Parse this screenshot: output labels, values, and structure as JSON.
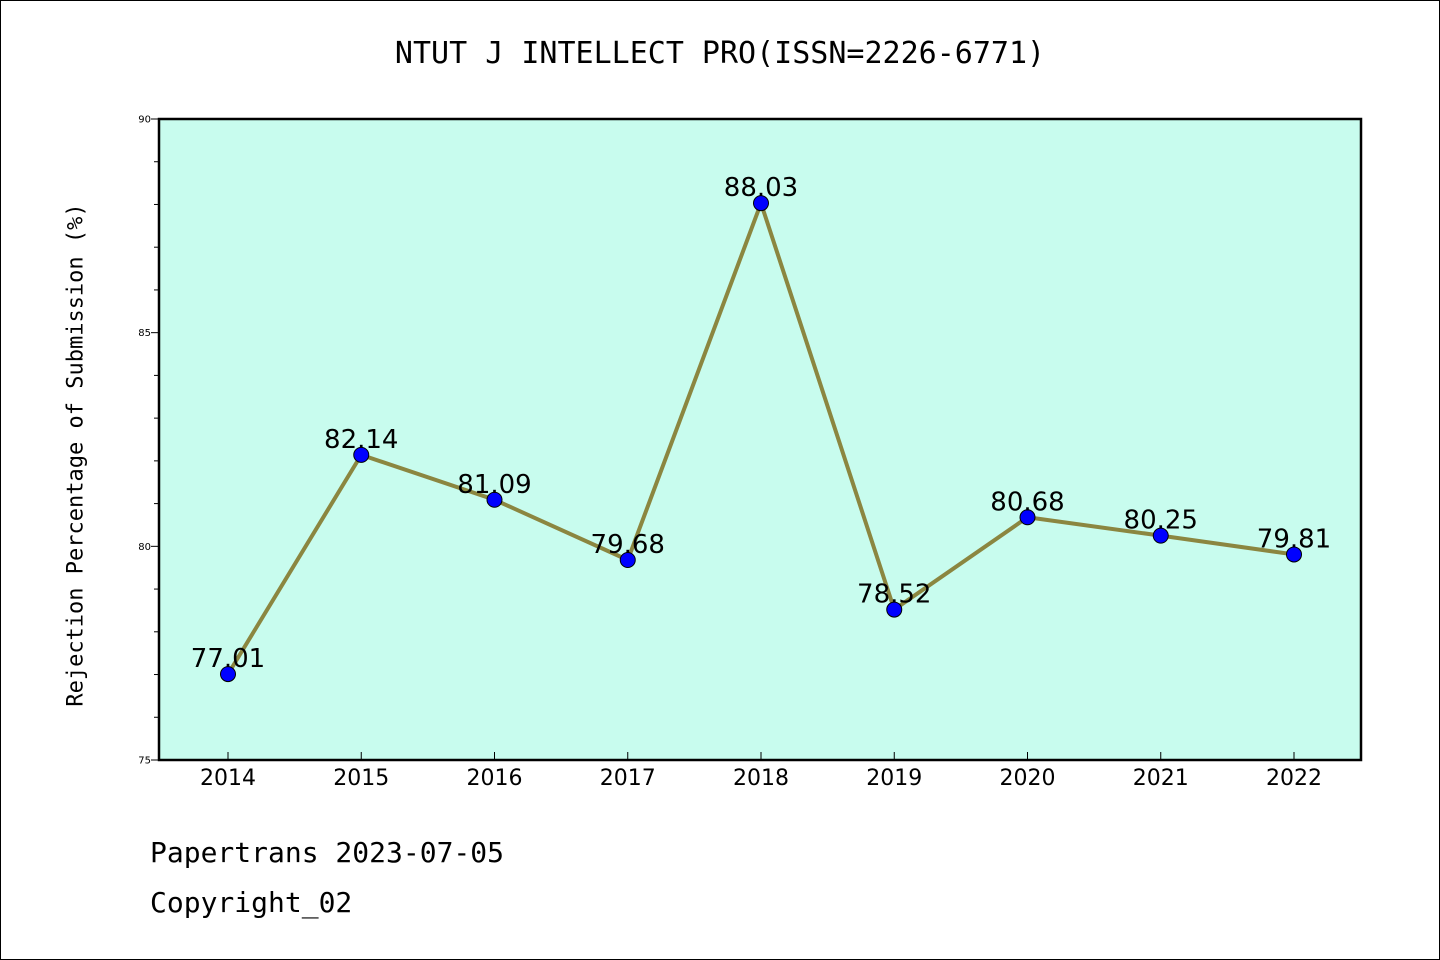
{
  "chart_data": {
    "type": "line",
    "title": "NTUT J INTELLECT PRO(ISSN=2226-6771)",
    "xlabel": "",
    "ylabel": "Rejection Percentage of Submission (%)",
    "categories": [
      "2014",
      "2015",
      "2016",
      "2017",
      "2018",
      "2019",
      "2020",
      "2021",
      "2022"
    ],
    "series": [
      {
        "values": [
          77.01,
          82.14,
          81.09,
          79.68,
          88.03,
          78.52,
          80.68,
          80.25,
          79.81
        ],
        "data_labels": [
          "77.01",
          "82.14",
          "81.09",
          "79.68",
          "88.03",
          "78.52",
          "80.68",
          "80.25",
          "79.81"
        ],
        "line_color": "#8b8640",
        "marker_color": "#0000ff"
      }
    ],
    "ylim": [
      75,
      90
    ],
    "yticks": [
      "75",
      "80",
      "85",
      "90"
    ],
    "grid": false,
    "plot_background": "#c8fcee"
  },
  "footer": {
    "line1": "Papertrans 2023-07-05",
    "line2": "Copyright_02"
  }
}
